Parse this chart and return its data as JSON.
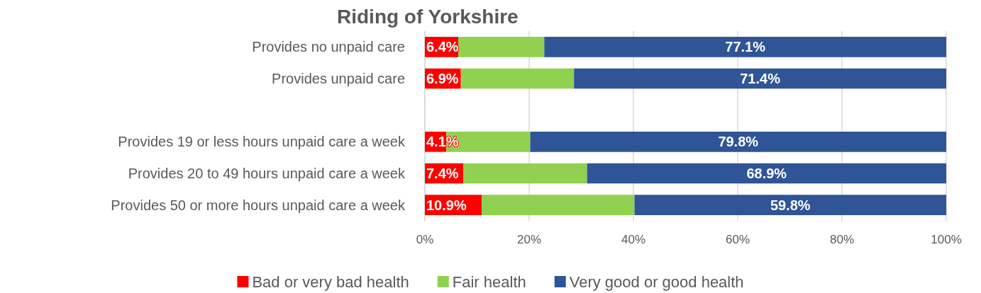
{
  "chart_data": {
    "type": "bar",
    "orientation": "horizontal",
    "stacked": true,
    "title": "Riding of Yorkshire",
    "categories": [
      "Provides no unpaid care",
      "Provides unpaid care",
      null,
      "Provides 19 or less hours unpaid care a week",
      "Provides 20 to 49 hours unpaid care a week",
      "Provides 50 or more hours unpaid care a week"
    ],
    "series": [
      {
        "name": "Bad or very bad health",
        "color": "#ff0000",
        "values": [
          6.4,
          6.9,
          null,
          4.1,
          7.4,
          10.9
        ],
        "value_labels": [
          "6.4%",
          "6.9%",
          null,
          "4.1%",
          "7.4%",
          "10.9%"
        ]
      },
      {
        "name": "Fair health",
        "color": "#92d050",
        "values": [
          16.5,
          21.7,
          null,
          16.1,
          23.7,
          29.3
        ]
      },
      {
        "name": "Very good or good health",
        "color": "#2f5597",
        "values": [
          77.1,
          71.4,
          null,
          79.8,
          68.9,
          59.8
        ],
        "value_labels": [
          "77.1%",
          "71.4%",
          null,
          "79.8%",
          "68.9%",
          "59.8%"
        ]
      }
    ],
    "xlim": [
      0,
      100
    ],
    "xticks": [
      {
        "value": 0,
        "label": "0%"
      },
      {
        "value": 20,
        "label": "20%"
      },
      {
        "value": 40,
        "label": "40%"
      },
      {
        "value": 60,
        "label": "60%"
      },
      {
        "value": 80,
        "label": "80%"
      },
      {
        "value": 100,
        "label": "100%"
      }
    ],
    "grid": "x",
    "legend": "bottom"
  }
}
